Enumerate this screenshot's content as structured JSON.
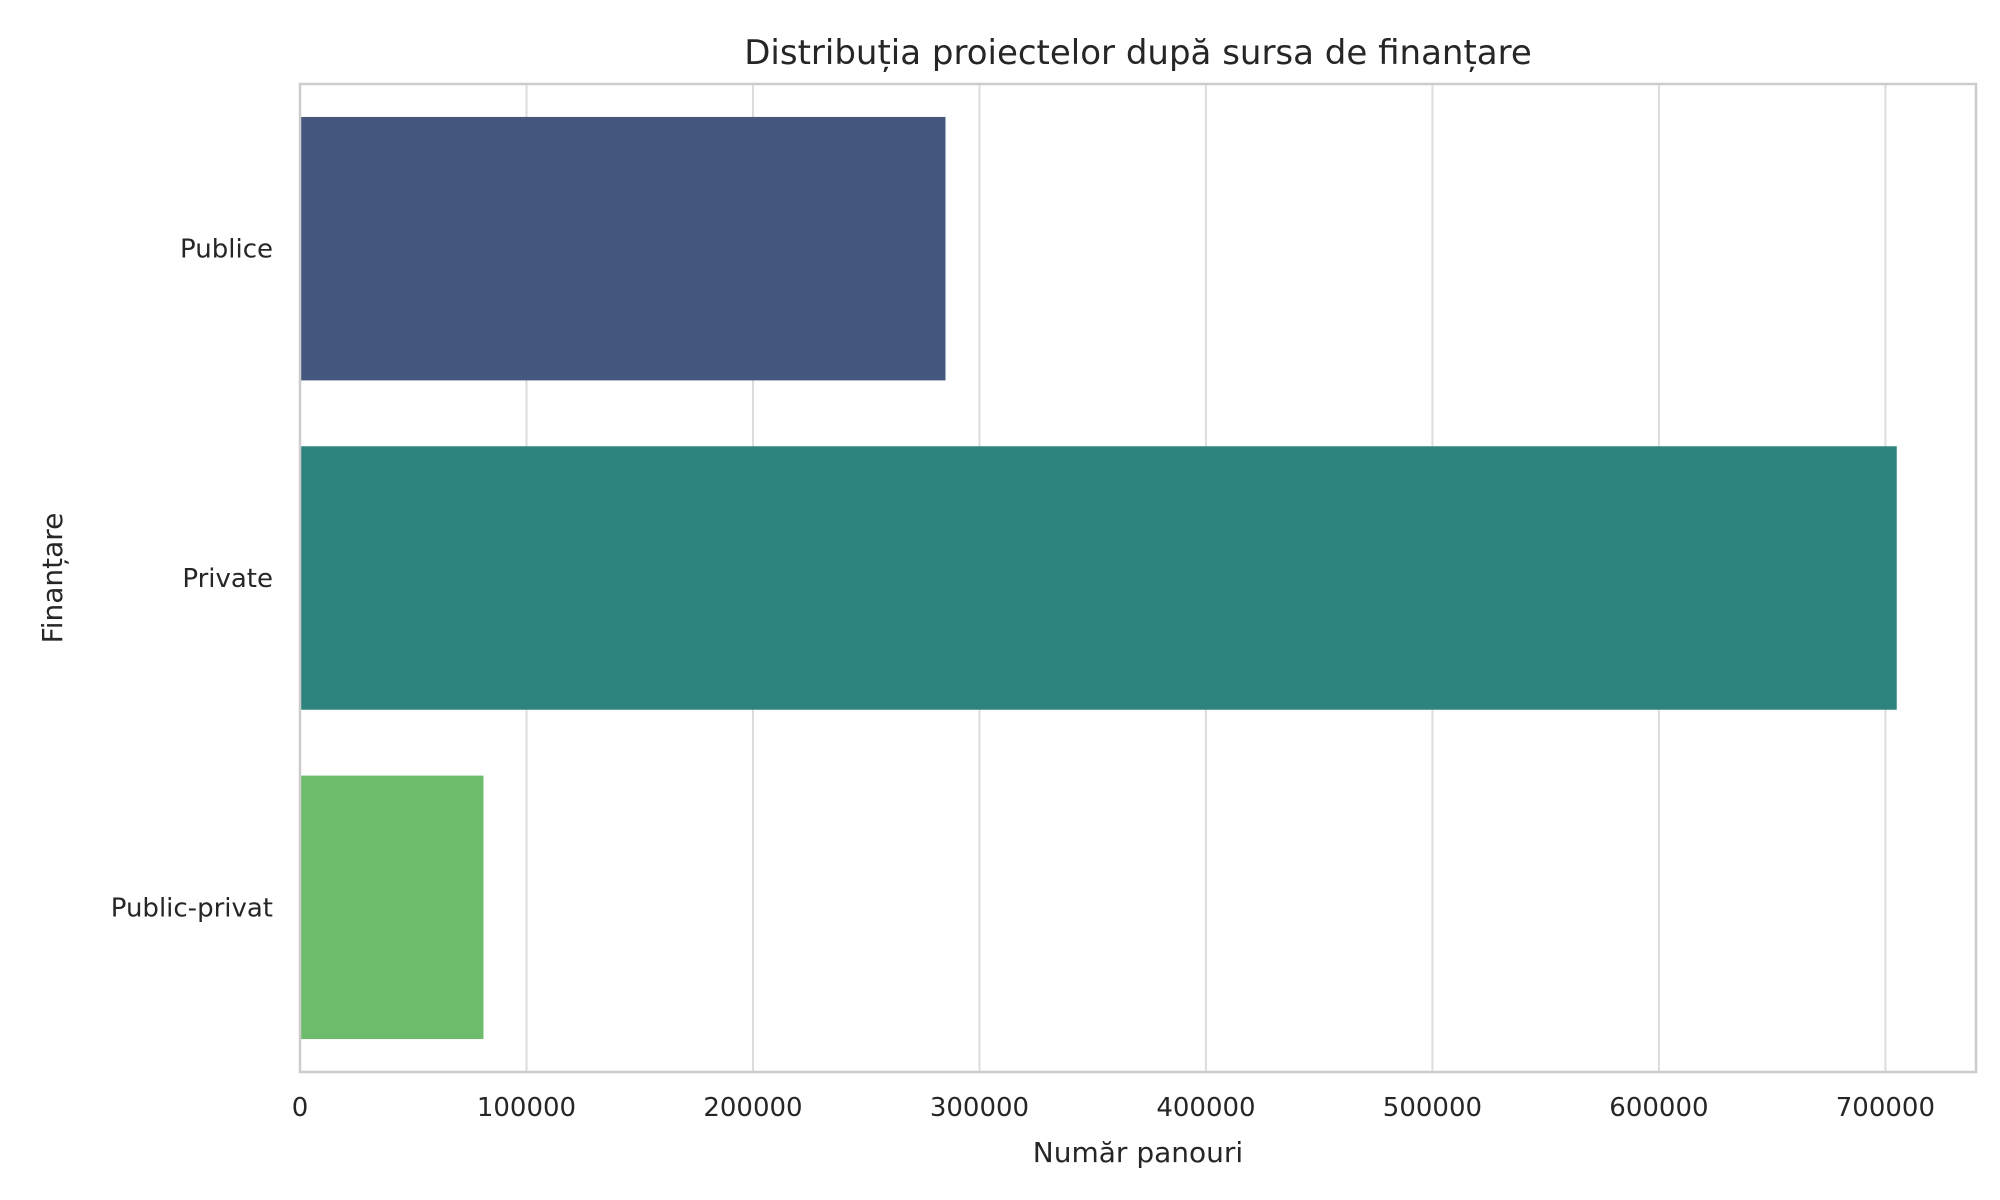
{
  "chart_data": {
    "type": "bar",
    "orientation": "horizontal",
    "title": "Distribuția proiectelor după sursa de finanțare",
    "xlabel": "Număr panouri",
    "ylabel": "Finanțare",
    "categories": [
      "Publice",
      "Private",
      "Public-privat"
    ],
    "values": [
      285000,
      705000,
      81000
    ],
    "colors": [
      "#46577f",
      "#2e837e",
      "#6cbc6c"
    ],
    "xlim": [
      0,
      740000
    ],
    "xticks": [
      0,
      100000,
      200000,
      300000,
      400000,
      500000,
      600000,
      700000
    ],
    "xtick_labels": [
      "0",
      "100000",
      "200000",
      "300000",
      "400000",
      "500000",
      "600000",
      "700000"
    ],
    "grid": true
  }
}
